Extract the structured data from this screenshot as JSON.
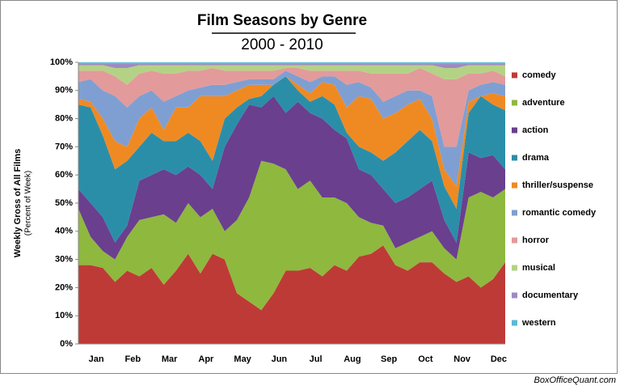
{
  "chart_data": {
    "type": "stacked_area",
    "title": "Film Seasons by Genre",
    "subtitle": "2000 - 2010",
    "y_label": "Weekly Gross of All Films",
    "y_sublabel": "(Percent of Week)",
    "footer": "BoxOfficeQuant.com",
    "categories": [
      null,
      "Jan",
      null,
      null,
      "Feb",
      null,
      null,
      "Mar",
      null,
      null,
      "Apr",
      null,
      null,
      "May",
      null,
      null,
      "Jun",
      null,
      null,
      "Jul",
      null,
      null,
      "Aug",
      null,
      null,
      "Sep",
      null,
      null,
      "Oct",
      null,
      null,
      "Nov",
      null,
      null,
      "Dec",
      null
    ],
    "ylim": [
      0,
      100
    ],
    "yticks": [
      {
        "value": 0,
        "label": "0%"
      },
      {
        "value": 10,
        "label": "10%"
      },
      {
        "value": 20,
        "label": "20%"
      },
      {
        "value": 30,
        "label": "30%"
      },
      {
        "value": 40,
        "label": "40%"
      },
      {
        "value": 50,
        "label": "50%"
      },
      {
        "value": 60,
        "label": "60%"
      },
      {
        "value": 70,
        "label": "70%"
      },
      {
        "value": 80,
        "label": "80%"
      },
      {
        "value": 90,
        "label": "90%"
      },
      {
        "value": 100,
        "label": "100%"
      }
    ],
    "legend": "right",
    "series": [
      {
        "name": "comedy",
        "color": "#be3a36",
        "values": [
          28,
          28,
          27,
          22,
          26,
          24,
          27,
          21,
          26,
          32,
          25,
          32,
          30,
          18,
          15,
          12,
          18,
          26,
          26,
          27,
          24,
          28,
          26,
          31,
          32,
          35,
          28,
          26,
          29,
          29,
          25,
          22,
          24,
          20,
          23,
          29
        ]
      },
      {
        "name": "adventure",
        "color": "#8fb83f",
        "values": [
          20,
          10,
          6,
          8,
          12,
          20,
          18,
          25,
          17,
          18,
          20,
          16,
          10,
          26,
          37,
          53,
          46,
          36,
          29,
          31,
          28,
          24,
          24,
          14,
          11,
          7,
          6,
          10,
          9,
          11,
          9,
          8,
          28,
          34,
          29,
          26
        ]
      },
      {
        "name": "action",
        "color": "#6a3f8e",
        "values": [
          7,
          12,
          12,
          6,
          4,
          14,
          15,
          16,
          17,
          13,
          15,
          7,
          30,
          34,
          33,
          19,
          24,
          20,
          31,
          24,
          28,
          24,
          23,
          17,
          17,
          13,
          16,
          16,
          17,
          18,
          10,
          6,
          16,
          12,
          15,
          7
        ]
      },
      {
        "name": "drama",
        "color": "#2b8ea9",
        "values": [
          30,
          34,
          29,
          26,
          23,
          12,
          15,
          10,
          12,
          12,
          12,
          10,
          10,
          6,
          2,
          4,
          4,
          13,
          4,
          4,
          8,
          9,
          2,
          8,
          8,
          10,
          18,
          20,
          21,
          14,
          12,
          12,
          14,
          22,
          18,
          21
        ]
      },
      {
        "name": "thriller/suspense",
        "color": "#ef8a23",
        "values": [
          2,
          2,
          6,
          10,
          5,
          10,
          9,
          4,
          12,
          9,
          16,
          23,
          8,
          6,
          5,
          4,
          0,
          0,
          2,
          3,
          5,
          7,
          9,
          18,
          19,
          15,
          14,
          13,
          11,
          8,
          6,
          8,
          4,
          0,
          4,
          5
        ]
      },
      {
        "name": "romantic comedy",
        "color": "#7f9fd2",
        "values": [
          6,
          8,
          10,
          16,
          14,
          8,
          6,
          10,
          4,
          6,
          3,
          4,
          4,
          3,
          2,
          2,
          2,
          2,
          3,
          4,
          2,
          3,
          8,
          5,
          4,
          6,
          6,
          5,
          3,
          8,
          8,
          14,
          4,
          4,
          4,
          4
        ]
      },
      {
        "name": "horror",
        "color": "#e39a9b",
        "values": [
          4,
          3,
          7,
          7,
          8,
          8,
          7,
          10,
          8,
          7,
          6,
          6,
          5,
          4,
          3,
          3,
          3,
          1,
          3,
          4,
          2,
          2,
          5,
          4,
          5,
          10,
          8,
          6,
          8,
          8,
          24,
          24,
          6,
          4,
          4,
          3
        ]
      },
      {
        "name": "musical",
        "color": "#b4d285",
        "values": [
          2,
          2,
          2,
          3,
          6,
          3,
          2,
          3,
          3,
          2,
          2,
          1,
          2,
          2,
          2,
          2,
          2,
          1,
          1,
          2,
          2,
          2,
          2,
          2,
          3,
          3,
          3,
          3,
          1,
          3,
          4,
          4,
          3,
          3,
          2,
          4
        ]
      },
      {
        "name": "documentary",
        "color": "#9d8bc3",
        "values": [
          0.5,
          0.5,
          0.5,
          1.5,
          1.5,
          0.5,
          0.5,
          0.5,
          0.5,
          0.5,
          0.5,
          0.5,
          0.5,
          0.5,
          0.5,
          0.5,
          0.5,
          0.5,
          0.5,
          0.5,
          0.5,
          0.5,
          0.5,
          0.5,
          0.5,
          0.5,
          0.5,
          0.5,
          0.5,
          0.5,
          1.5,
          1.5,
          0.5,
          0.5,
          0.5,
          0.5
        ]
      },
      {
        "name": "western",
        "color": "#5cb8d6",
        "values": [
          0.5,
          0.5,
          0.5,
          0.5,
          0.5,
          0.5,
          0.5,
          0.5,
          0.5,
          0.5,
          0.5,
          0.5,
          0.5,
          0.5,
          0.5,
          0.5,
          0.5,
          0.5,
          0.5,
          0.5,
          0.5,
          0.5,
          0.5,
          0.5,
          0.5,
          0.5,
          0.5,
          0.5,
          0.5,
          0.5,
          0.5,
          0.5,
          0.5,
          0.5,
          0.5,
          0.5
        ]
      }
    ]
  }
}
